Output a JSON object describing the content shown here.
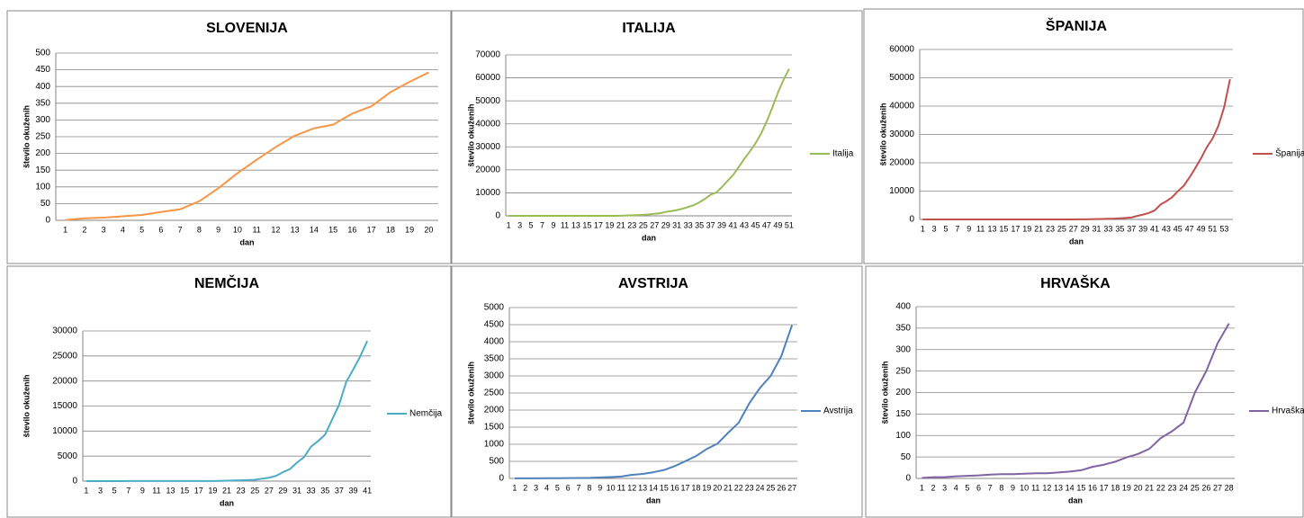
{
  "chart_data": [
    {
      "type": "line",
      "title": "SLOVENIJA",
      "y_label": "število okuženih",
      "x_label": "dan",
      "color": "#f79646",
      "categories": [
        1,
        2,
        3,
        4,
        5,
        6,
        7,
        8,
        9,
        10,
        11,
        12,
        13,
        14,
        15,
        16,
        17,
        18,
        19,
        20
      ],
      "values": [
        1,
        6,
        8,
        12,
        16,
        25,
        33,
        57,
        96,
        141,
        181,
        219,
        253,
        275,
        286,
        319,
        341,
        383,
        414,
        442
      ],
      "ylim": [
        0,
        500
      ],
      "yticks": [
        0,
        50,
        100,
        150,
        200,
        250,
        300,
        350,
        400,
        450,
        500
      ],
      "grid": true
    },
    {
      "type": "line",
      "title": "ITALIJA",
      "y_label": "število okuženih",
      "x_label": "dan",
      "categories": [
        1,
        null,
        3,
        null,
        5,
        null,
        7,
        null,
        9,
        null,
        11,
        null,
        13,
        null,
        15,
        null,
        17,
        null,
        19,
        null,
        21,
        null,
        23,
        null,
        25,
        null,
        27,
        null,
        29,
        null,
        31,
        null,
        33,
        null,
        35,
        null,
        37,
        null,
        39,
        null,
        41,
        null,
        43,
        null,
        45,
        null,
        47,
        null,
        49,
        null,
        51
      ],
      "series": [
        {
          "name": "Italija",
          "color": "#9bbb59",
          "values": [
            2,
            2,
            2,
            2,
            2,
            2,
            3,
            3,
            3,
            3,
            3,
            3,
            3,
            3,
            3,
            3,
            3,
            3,
            3,
            20,
            62,
            155,
            229,
            322,
            453,
            655,
            888,
            1128,
            1694,
            2036,
            2502,
            3089,
            3858,
            4636,
            5883,
            7375,
            9172,
            10149,
            12462,
            15113,
            17660,
            21157,
            24747,
            27980,
            31506,
            35713,
            41035,
            47021,
            53578,
            59138,
            63927
          ]
        }
      ],
      "ylim": [
        0,
        70000
      ],
      "yticks": [
        0,
        10000,
        20000,
        30000,
        40000,
        50000,
        60000,
        70000
      ],
      "grid": true
    },
    {
      "type": "line",
      "title": "ŠPANIJA",
      "y_label": "število okuženih",
      "x_label": "dan",
      "categories": [
        1,
        null,
        3,
        null,
        5,
        null,
        7,
        null,
        9,
        null,
        11,
        null,
        13,
        null,
        15,
        null,
        17,
        null,
        19,
        null,
        21,
        null,
        23,
        null,
        25,
        null,
        27,
        null,
        29,
        null,
        31,
        null,
        33,
        null,
        35,
        null,
        37,
        null,
        39,
        null,
        41,
        null,
        43,
        null,
        45,
        null,
        47,
        null,
        49,
        null,
        51,
        null,
        53,
        null
      ],
      "series": [
        {
          "name": "Španija",
          "color": "#c0504d",
          "values": [
            1,
            1,
            1,
            1,
            1,
            1,
            1,
            1,
            1,
            2,
            2,
            2,
            2,
            2,
            2,
            2,
            2,
            2,
            2,
            2,
            2,
            2,
            2,
            2,
            2,
            2,
            2,
            32,
            45,
            84,
            120,
            165,
            228,
            282,
            401,
            525,
            674,
            1231,
            1695,
            2277,
            3146,
            5232,
            6391,
            7798,
            9942,
            11826,
            14769,
            18077,
            21571,
            25496,
            28572,
            33089,
            39673,
            49515
          ]
        }
      ],
      "ylim": [
        0,
        60000
      ],
      "yticks": [
        0,
        10000,
        20000,
        30000,
        40000,
        50000,
        60000
      ],
      "grid": true
    },
    {
      "type": "line",
      "title": "NEMČIJA",
      "y_label": "število okuženih",
      "x_label": "dan",
      "categories": [
        1,
        null,
        3,
        null,
        5,
        null,
        7,
        null,
        9,
        null,
        11,
        null,
        13,
        null,
        15,
        null,
        17,
        null,
        19,
        null,
        21,
        null,
        23,
        null,
        25,
        null,
        27,
        null,
        29,
        null,
        31,
        null,
        33,
        null,
        35,
        null,
        37,
        null,
        39,
        null,
        41
      ],
      "series": [
        {
          "name": "Nemčija",
          "color": "#4bacc6",
          "values": [
            1,
            4,
            4,
            5,
            8,
            10,
            12,
            12,
            12,
            12,
            13,
            13,
            14,
            14,
            16,
            16,
            16,
            18,
            26,
            48,
            79,
            130,
            159,
            196,
            262,
            482,
            670,
            1040,
            1800,
            2400,
            3700,
            4800,
            6900,
            8000,
            9300,
            12300,
            15300,
            19800,
            22300,
            24900,
            28000
          ]
        }
      ],
      "ylim": [
        0,
        30000
      ],
      "yticks": [
        0,
        5000,
        10000,
        15000,
        20000,
        25000,
        30000
      ],
      "grid": true
    },
    {
      "type": "line",
      "title": "AVSTRIJA",
      "y_label": "število okuženih",
      "x_label": "dan",
      "categories": [
        1,
        2,
        3,
        4,
        5,
        6,
        7,
        8,
        9,
        10,
        11,
        12,
        13,
        14,
        15,
        16,
        17,
        18,
        19,
        20,
        21,
        22,
        23,
        24,
        25,
        26,
        27
      ],
      "series": [
        {
          "name": "Avstrija",
          "color": "#4f81bd",
          "values": [
            2,
            2,
            3,
            5,
            7,
            10,
            14,
            18,
            29,
            41,
            55,
            104,
            131,
            182,
            246,
            361,
            504,
            655,
            860,
            1016,
            1332,
            1630,
            2200,
            2650,
            3000,
            3580,
            4486
          ]
        }
      ],
      "ylim": [
        0,
        5000
      ],
      "yticks": [
        0,
        500,
        1000,
        1500,
        2000,
        2500,
        3000,
        3500,
        4000,
        4500,
        5000
      ],
      "grid": true
    },
    {
      "type": "line",
      "title": "HRVAŠKA",
      "y_label": "število okuženih",
      "x_label": "dan",
      "categories": [
        1,
        2,
        3,
        4,
        5,
        6,
        7,
        8,
        9,
        10,
        11,
        12,
        13,
        14,
        15,
        16,
        17,
        18,
        19,
        20,
        21,
        22,
        23,
        24,
        25,
        26,
        27,
        28
      ],
      "series": [
        {
          "name": "Hrvaška",
          "color": "#8064a2",
          "values": [
            1,
            3,
            3,
            5,
            6,
            7,
            9,
            10,
            10,
            11,
            12,
            12,
            14,
            16,
            19,
            27,
            32,
            39,
            49,
            57,
            69,
            94,
            110,
            130,
            200,
            250,
            315,
            361
          ]
        }
      ],
      "ylim": [
        0,
        400
      ],
      "yticks": [
        0,
        50,
        100,
        150,
        200,
        250,
        300,
        350,
        400
      ],
      "grid": true
    }
  ]
}
